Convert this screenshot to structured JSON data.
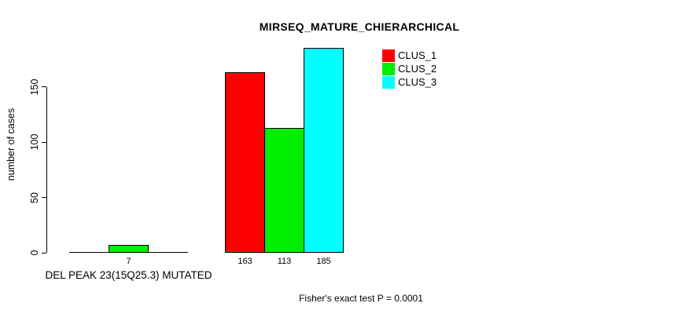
{
  "chart_data": {
    "type": "bar",
    "title": "MIRSEQ_MATURE_CHIERARCHICAL",
    "xlabel": "",
    "ylabel": "number of cases",
    "ylim": [
      0,
      150
    ],
    "yticks": [
      "0",
      "50",
      "100",
      "150"
    ],
    "grid": false,
    "legend_position": "top-right",
    "series": [
      {
        "name": "CLUS_1",
        "color": "#FF0000"
      },
      {
        "name": "CLUS_2",
        "color": "#00EE00"
      },
      {
        "name": "CLUS_3",
        "color": "#00FFFF"
      }
    ],
    "groups": [
      {
        "category": "DEL PEAK 23(15Q25.3) MUTATED",
        "values": [
          0,
          7,
          0
        ],
        "bar_labels": [
          "",
          "7",
          ""
        ]
      },
      {
        "category": "",
        "values": [
          163,
          113,
          185
        ],
        "bar_labels": [
          "163",
          "113",
          "185"
        ]
      }
    ],
    "annotation": "Fisher's exact test P = 0.0001"
  }
}
